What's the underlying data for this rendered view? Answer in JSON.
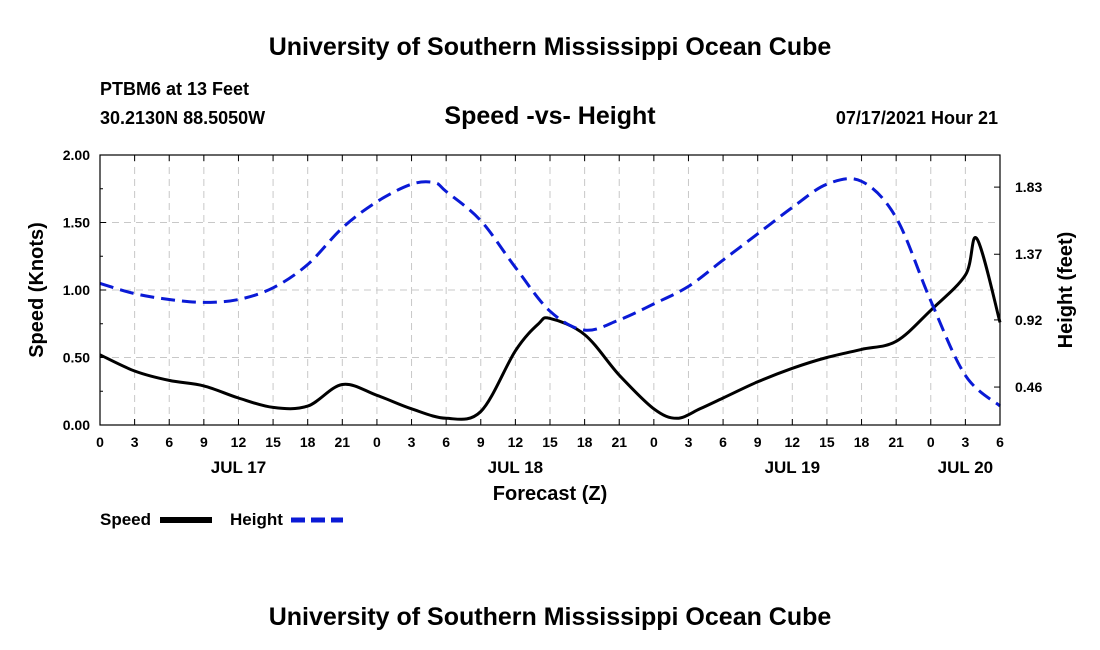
{
  "header": {
    "title": "University of Southern Mississippi Ocean Cube",
    "station": "PTBM6 at 13 Feet",
    "coords": "30.2130N  88.5050W",
    "chart_title": "Speed -vs- Height",
    "datetime": "07/17/2021 Hour 21"
  },
  "footer": {
    "title": "University of Southern Mississippi Ocean Cube"
  },
  "colors": {
    "speed": "#000000",
    "height": "#0a1ad6"
  },
  "chart_data": {
    "type": "line",
    "title": "Speed -vs- Height",
    "xlabel": "Forecast (Z)",
    "ylabel": "Speed (Knots)",
    "y2label": "Height (feet)",
    "x_range_hours": [
      0,
      78
    ],
    "ylim": [
      0,
      2.0
    ],
    "y2lim": [
      0.2,
      2.05
    ],
    "yticks": [
      "0.00",
      "0.50",
      "1.00",
      "1.50",
      "2.00"
    ],
    "yticks_values": [
      0,
      0.5,
      1.0,
      1.5,
      2.0
    ],
    "y2ticks": [
      "0.46",
      "0.92",
      "1.37",
      "1.83"
    ],
    "y2ticks_values": [
      0.46,
      0.92,
      1.37,
      1.83
    ],
    "xticks": [
      "0",
      "3",
      "6",
      "9",
      "12",
      "15",
      "18",
      "21",
      "0",
      "3",
      "6",
      "9",
      "12",
      "15",
      "18",
      "21",
      "0",
      "3",
      "6",
      "9",
      "12",
      "15",
      "18",
      "21",
      "0",
      "3",
      "6"
    ],
    "day_labels": [
      {
        "label": "JUL 17",
        "hour": 12
      },
      {
        "label": "JUL 18",
        "hour": 36
      },
      {
        "label": "JUL 19",
        "hour": 60
      },
      {
        "label": "JUL 20",
        "hour": 75
      }
    ],
    "series": [
      {
        "name": "Speed",
        "axis": "left",
        "style": "solid",
        "x": [
          0,
          3,
          6,
          9,
          12,
          15,
          18,
          21,
          24,
          27,
          30,
          33,
          36,
          38,
          39,
          42,
          45,
          48,
          50,
          52,
          54,
          57,
          60,
          63,
          66,
          69,
          72,
          75,
          76,
          78
        ],
        "values": [
          0.52,
          0.4,
          0.33,
          0.29,
          0.2,
          0.13,
          0.14,
          0.3,
          0.22,
          0.12,
          0.05,
          0.1,
          0.55,
          0.75,
          0.79,
          0.67,
          0.37,
          0.12,
          0.05,
          0.12,
          0.2,
          0.32,
          0.42,
          0.5,
          0.56,
          0.62,
          0.85,
          1.11,
          1.38,
          0.76
        ]
      },
      {
        "name": "Height",
        "axis": "right",
        "style": "dashed",
        "x": [
          0,
          3,
          6,
          9,
          12,
          15,
          18,
          21,
          24,
          27,
          29,
          30,
          33,
          36,
          39,
          42,
          45,
          48,
          51,
          54,
          57,
          60,
          63,
          66,
          69,
          72,
          75,
          78
        ],
        "values": [
          1.17,
          1.1,
          1.06,
          1.04,
          1.06,
          1.14,
          1.3,
          1.55,
          1.73,
          1.85,
          1.86,
          1.8,
          1.6,
          1.28,
          0.98,
          0.85,
          0.92,
          1.03,
          1.15,
          1.33,
          1.51,
          1.69,
          1.85,
          1.87,
          1.62,
          1.05,
          0.54,
          0.33
        ]
      }
    ],
    "legend": [
      {
        "label": "Speed",
        "style": "solid"
      },
      {
        "label": "Height",
        "style": "dashed"
      }
    ]
  }
}
